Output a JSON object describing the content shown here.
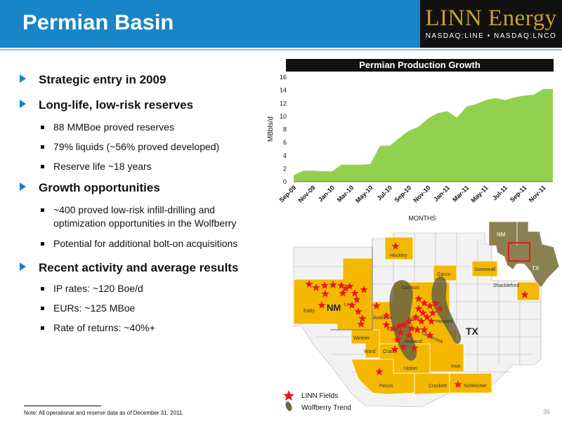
{
  "header": {
    "title": "Permian Basin",
    "logo_name": "LINN Energy",
    "logo_sub": "NASDAQ:LINE • NASDAQ:LNCO"
  },
  "bullets": {
    "b1": "Strategic entry in 2009",
    "b2": "Long-life, low-risk reserves",
    "b2_1": "88 MMBoe proved reserves",
    "b2_2": "79% liquids (~56% proved developed)",
    "b2_3": "Reserve life ~18 years",
    "b3": "Growth opportunities",
    "b3_1": "~400 proved low-risk infill-drilling and optimization opportunities in the Wolfberry",
    "b3_2": "Potential for additional bolt-on acquisitions",
    "b4": "Recent activity and average results",
    "b4_1": "IP rates: ~120 Boe/d",
    "b4_2": "EURs: ~125 MBoe",
    "b4_3": "Rate of returns: ~40%+"
  },
  "chart_data": {
    "type": "area",
    "title": "Permian Production Growth",
    "xlabel": "MONTHS",
    "ylabel": "MBbls/d",
    "ylim": [
      0,
      16
    ],
    "yticks": [
      "0",
      "2",
      "4",
      "6",
      "8",
      "10",
      "12",
      "14",
      "16"
    ],
    "xtick_labels": [
      "Sep-09",
      "Nov-09",
      "Jan-10",
      "Mar-10",
      "May-10",
      "Jul-10",
      "Sep-10",
      "Nov-10",
      "Jan-11",
      "Mar-11",
      "May-11",
      "Jul-11",
      "Sep-11",
      "Nov-11"
    ],
    "x": [
      "Sep-09",
      "Oct-09",
      "Nov-09",
      "Dec-09",
      "Jan-10",
      "Feb-10",
      "Mar-10",
      "Apr-10",
      "May-10",
      "Jun-10",
      "Jul-10",
      "Aug-10",
      "Sep-10",
      "Oct-10",
      "Nov-10",
      "Dec-10",
      "Jan-11",
      "Feb-11",
      "Mar-11",
      "Apr-11",
      "May-11",
      "Jun-11",
      "Jul-11",
      "Aug-11",
      "Sep-11",
      "Oct-11",
      "Nov-11",
      "Dec-11"
    ],
    "values": [
      1.0,
      1.7,
      1.7,
      1.6,
      1.6,
      2.6,
      2.6,
      2.6,
      2.7,
      5.5,
      5.5,
      6.7,
      7.8,
      8.4,
      9.7,
      10.5,
      10.8,
      9.8,
      11.5,
      11.9,
      12.5,
      12.8,
      12.5,
      12.9,
      13.2,
      13.3,
      14.2,
      14.2
    ],
    "grid": false,
    "color": "#92d050"
  },
  "map": {
    "nm_label": "NM",
    "tx_label": "TX",
    "inset_nm": "NM",
    "inset_tx": "TX",
    "counties": {
      "hockley": "Hockley",
      "garza": "Garza",
      "stonewall": "Stonewall",
      "shackleford": "Shackleford",
      "dawson": "Dawson",
      "lea": "Lea",
      "eddy": "Eddy",
      "andrews": "Andrews",
      "martin": "Martin",
      "howard": "Howard",
      "glasscock": "Glasscock",
      "ector": "Ector",
      "midland": "Midland",
      "winkler": "Winkler",
      "ward": "Ward",
      "crane": "Crane",
      "upton": "Upton",
      "irion": "Irion",
      "pecos": "Pecos",
      "crockett": "Crockett",
      "schleicher": "Schleicher"
    },
    "legend": {
      "fields": "LINN Fields",
      "trend": "Wolfberry Trend"
    },
    "colors": {
      "county_fill": "#f5b800",
      "trend_fill": "#6b6442",
      "star": "#e8171e",
      "inset_fill": "#8a8152",
      "inset_box": "#e8171e"
    }
  },
  "footer": {
    "note": "Note: All operational and reserve data as of December 31, 2011.",
    "page_number": "36"
  }
}
